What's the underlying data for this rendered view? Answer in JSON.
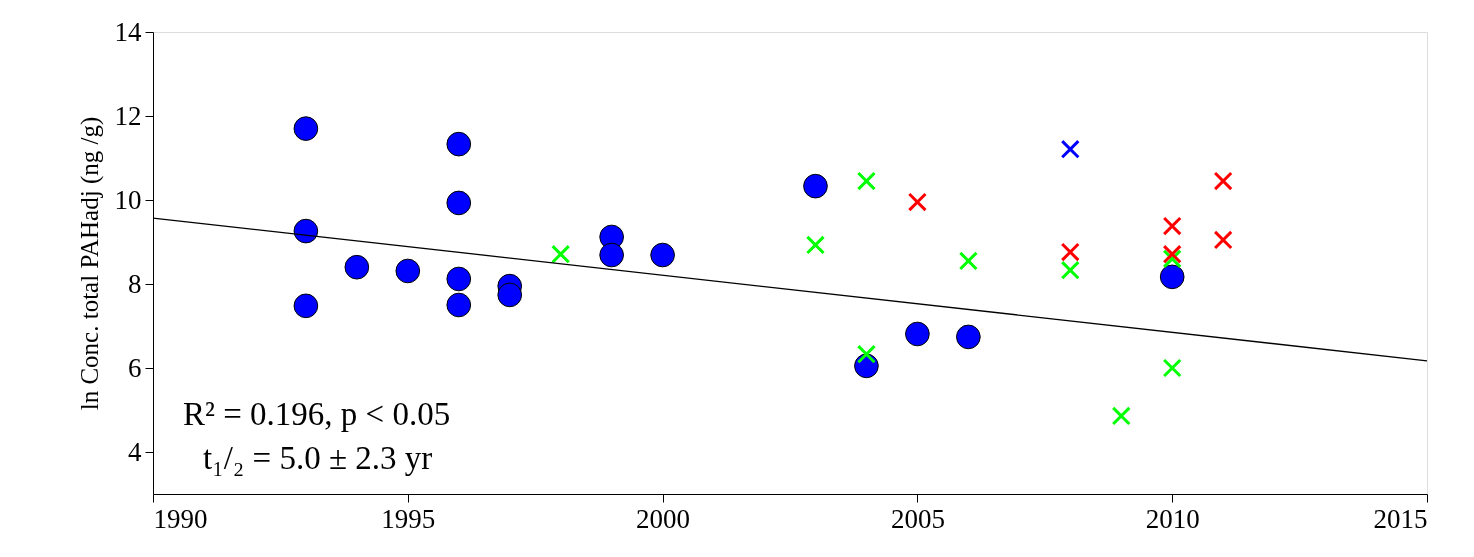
{
  "chart_data": {
    "type": "scatter",
    "ylabel": "ln Conc. total PAHadj (ng /g)",
    "xlim": [
      1990,
      2015
    ],
    "xticks": [
      1990,
      1995,
      2000,
      2005,
      2010,
      2015
    ],
    "ylim": [
      3,
      14
    ],
    "yticks": [
      4,
      6,
      8,
      10,
      12,
      14
    ],
    "grid": false,
    "series": [
      {
        "marker": "circle",
        "color": "#0000ff",
        "x": [
          1993,
          1993,
          1993,
          1994,
          1995,
          1996,
          1996,
          1996,
          1996,
          1997,
          1997,
          1999,
          1999,
          2000,
          2003,
          2004,
          2005,
          2006,
          2010
        ],
        "values": [
          11.7,
          9.26,
          7.48,
          8.4,
          8.31,
          11.33,
          9.93,
          8.12,
          7.5,
          7.95,
          7.74,
          9.12,
          8.69,
          8.69,
          10.33,
          6.05,
          6.81,
          6.74,
          8.17
        ]
      },
      {
        "marker": "cross",
        "color": "#00ff00",
        "x": [
          1998,
          2003,
          2004,
          2004,
          2006,
          2008,
          2009,
          2010,
          2010
        ],
        "values": [
          8.71,
          8.93,
          10.45,
          6.33,
          8.55,
          8.33,
          4.86,
          8.6,
          6.0
        ]
      },
      {
        "marker": "cross",
        "color": "#ff0000",
        "x": [
          2005,
          2008,
          2010,
          2010,
          2011,
          2011
        ],
        "values": [
          9.95,
          8.76,
          9.38,
          8.71,
          10.45,
          9.05
        ]
      },
      {
        "marker": "cross",
        "color": "#0000ff",
        "x": [
          2008
        ],
        "values": [
          11.21
        ]
      },
      {
        "type": "line",
        "color": "#000000",
        "x": [
          1990,
          2015
        ],
        "values": [
          9.57,
          6.17
        ]
      }
    ],
    "annotations": [
      "R² = 0.196, p < 0.05",
      "t₁/₂ = 5.0 ± 2.3 yr"
    ]
  }
}
